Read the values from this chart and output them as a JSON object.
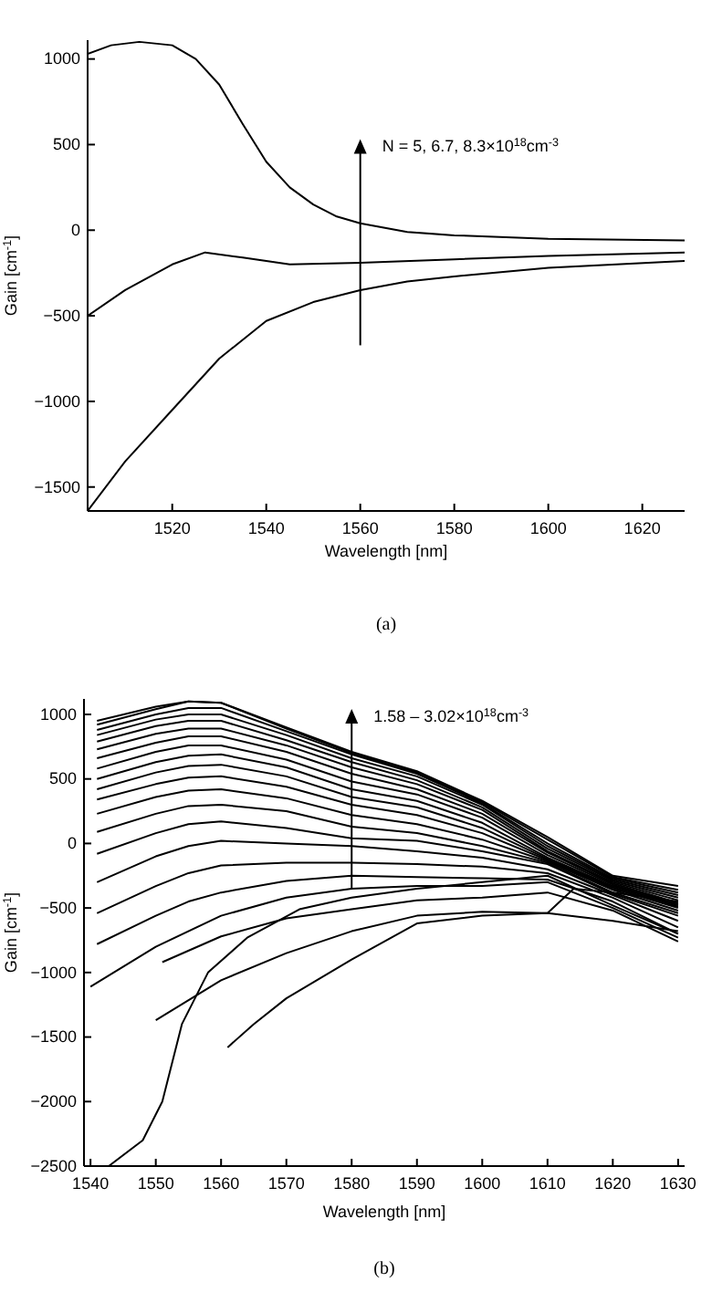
{
  "chart_data": [
    {
      "type": "line",
      "xlabel": "Wavelength [nm]",
      "ylabel": "Gain [cm$^{-1}$]",
      "xlim": [
        1502,
        1629
      ],
      "ylim": [
        -1640,
        1110
      ],
      "xticks": [
        1520,
        1540,
        1560,
        1580,
        1600,
        1620
      ],
      "yticks": [
        -1500,
        -1000,
        -500,
        0,
        500,
        1000
      ],
      "grid": false,
      "line_style": "solid",
      "marker": "none",
      "annotations": [
        {
          "text": "N = 5, 6.7, 8.3×10$^{18}$cm$^{-3}$",
          "x": 1560,
          "y": 500
        },
        "(a)"
      ],
      "series": [
        {
          "color": "#000000",
          "x": [
            1502,
            1507,
            1513,
            1520,
            1525,
            1530,
            1535,
            1540,
            1545,
            1550,
            1555,
            1560,
            1570,
            1580,
            1600,
            1629
          ],
          "values": [
            1030,
            1080,
            1100,
            1080,
            1000,
            850,
            620,
            400,
            250,
            150,
            80,
            40,
            -10,
            -30,
            -50,
            -60
          ]
        },
        {
          "color": "#000000",
          "x": [
            1502,
            1510,
            1520,
            1527,
            1535,
            1545,
            1560,
            1580,
            1600,
            1629
          ],
          "values": [
            -500,
            -350,
            -200,
            -130,
            -160,
            -200,
            -190,
            -170,
            -150,
            -130
          ]
        },
        {
          "color": "#000000",
          "x": [
            1502,
            1510,
            1520,
            1530,
            1540,
            1550,
            1560,
            1570,
            1580,
            1600,
            1629
          ],
          "values": [
            -1640,
            -1350,
            -1050,
            -750,
            -530,
            -420,
            -350,
            -300,
            -270,
            -220,
            -180
          ]
        }
      ]
    },
    {
      "type": "line",
      "xlabel": "Wavelength [nm]",
      "ylabel": "Gain [cm$^{-1}$]",
      "xlim": [
        1539,
        1631
      ],
      "ylim": [
        -2500,
        1120
      ],
      "xticks": [
        1540,
        1550,
        1560,
        1570,
        1580,
        1590,
        1600,
        1610,
        1620,
        1630
      ],
      "yticks": [
        -2500,
        -2000,
        -1500,
        -1000,
        -500,
        0,
        500,
        1000
      ],
      "grid": false,
      "line_style": "solid",
      "marker": "none",
      "annotations": [
        {
          "text": "1.58 – 3.02×10$^{18}$cm$^{-3}$",
          "x": 1580,
          "y": 1000
        },
        "(b)"
      ],
      "series": [
        {
          "color": "#000000",
          "x": [
            1541,
            1550,
            1555,
            1560,
            1570,
            1580,
            1590,
            1600,
            1610,
            1620,
            1630
          ],
          "values": [
            950,
            1060,
            1100,
            1090,
            900,
            710,
            560,
            330,
            50,
            -250,
            -330
          ]
        },
        {
          "color": "#000000",
          "x": [
            1541,
            1550,
            1555,
            1560,
            1570,
            1580,
            1590,
            1600,
            1610,
            1620,
            1630
          ],
          "values": [
            920,
            1040,
            1100,
            1090,
            890,
            700,
            550,
            320,
            30,
            -260,
            -360
          ]
        },
        {
          "color": "#000000",
          "x": [
            1541,
            1550,
            1555,
            1560,
            1570,
            1580,
            1590,
            1600,
            1610,
            1620,
            1630
          ],
          "values": [
            880,
            1000,
            1050,
            1050,
            870,
            690,
            540,
            310,
            0,
            -270,
            -380
          ]
        },
        {
          "color": "#000000",
          "x": [
            1541,
            1550,
            1555,
            1560,
            1570,
            1580,
            1590,
            1600,
            1610,
            1620,
            1630
          ],
          "values": [
            840,
            960,
            1000,
            1000,
            840,
            660,
            520,
            300,
            -20,
            -280,
            -400
          ]
        },
        {
          "color": "#000000",
          "x": [
            1541,
            1550,
            1555,
            1560,
            1570,
            1580,
            1590,
            1600,
            1610,
            1620,
            1630
          ],
          "values": [
            790,
            910,
            950,
            950,
            800,
            630,
            490,
            280,
            -40,
            -290,
            -420
          ]
        },
        {
          "color": "#000000",
          "x": [
            1541,
            1550,
            1555,
            1560,
            1570,
            1580,
            1590,
            1600,
            1610,
            1620,
            1630
          ],
          "values": [
            730,
            850,
            890,
            890,
            760,
            590,
            460,
            260,
            -60,
            -300,
            -440
          ]
        },
        {
          "color": "#000000",
          "x": [
            1541,
            1550,
            1555,
            1560,
            1570,
            1580,
            1590,
            1600,
            1610,
            1620,
            1630
          ],
          "values": [
            660,
            780,
            830,
            830,
            710,
            540,
            420,
            230,
            -70,
            -310,
            -460
          ]
        },
        {
          "color": "#000000",
          "x": [
            1541,
            1550,
            1555,
            1560,
            1570,
            1580,
            1590,
            1600,
            1610,
            1620,
            1630
          ],
          "values": [
            580,
            710,
            760,
            760,
            650,
            480,
            380,
            200,
            -90,
            -320,
            -470
          ]
        },
        {
          "color": "#000000",
          "x": [
            1541,
            1550,
            1555,
            1560,
            1570,
            1580,
            1590,
            1600,
            1610,
            1620,
            1630
          ],
          "values": [
            500,
            630,
            680,
            690,
            590,
            420,
            330,
            160,
            -110,
            -330,
            -480
          ]
        },
        {
          "color": "#000000",
          "x": [
            1541,
            1550,
            1555,
            1560,
            1570,
            1580,
            1590,
            1600,
            1610,
            1620,
            1630
          ],
          "values": [
            420,
            550,
            600,
            610,
            520,
            360,
            280,
            120,
            -120,
            -340,
            -490
          ]
        },
        {
          "color": "#000000",
          "x": [
            1541,
            1550,
            1555,
            1560,
            1570,
            1580,
            1590,
            1600,
            1610,
            1620,
            1630
          ],
          "values": [
            340,
            460,
            510,
            520,
            440,
            300,
            220,
            80,
            -130,
            -350,
            -500
          ]
        },
        {
          "color": "#000000",
          "x": [
            1541,
            1550,
            1555,
            1560,
            1570,
            1580,
            1590,
            1600,
            1610,
            1620,
            1630
          ],
          "values": [
            230,
            360,
            410,
            420,
            350,
            220,
            150,
            30,
            -140,
            -360,
            -520
          ]
        },
        {
          "color": "#000000",
          "x": [
            1541,
            1550,
            1555,
            1560,
            1570,
            1580,
            1590,
            1600,
            1610,
            1620,
            1630
          ],
          "values": [
            90,
            230,
            290,
            300,
            250,
            130,
            80,
            -20,
            -150,
            -380,
            -540
          ]
        },
        {
          "color": "#000000",
          "x": [
            1541,
            1550,
            1555,
            1560,
            1570,
            1580,
            1590,
            1600,
            1610,
            1620,
            1630
          ],
          "values": [
            -80,
            80,
            150,
            170,
            120,
            40,
            20,
            -60,
            -160,
            -390,
            -560
          ]
        },
        {
          "color": "#000000",
          "x": [
            1541,
            1550,
            1555,
            1560,
            1570,
            1580,
            1590,
            1600,
            1610,
            1620,
            1630
          ],
          "values": [
            -300,
            -100,
            -20,
            20,
            0,
            -20,
            -60,
            -110,
            -200,
            -400,
            -600
          ]
        },
        {
          "color": "#000000",
          "x": [
            1541,
            1550,
            1555,
            1560,
            1570,
            1580,
            1590,
            1600,
            1610,
            1620,
            1630
          ],
          "values": [
            -540,
            -330,
            -230,
            -170,
            -150,
            -150,
            -160,
            -180,
            -230,
            -420,
            -650
          ]
        },
        {
          "color": "#000000",
          "x": [
            1541,
            1550,
            1555,
            1560,
            1570,
            1580,
            1590,
            1600,
            1610,
            1620,
            1630
          ],
          "values": [
            -780,
            -560,
            -450,
            -380,
            -290,
            -250,
            -260,
            -270,
            -280,
            -450,
            -700
          ]
        },
        {
          "color": "#000000",
          "x": [
            1540,
            1550,
            1560,
            1570,
            1580,
            1590,
            1600,
            1610,
            1620,
            1630
          ],
          "values": [
            -1110,
            -800,
            -560,
            -420,
            -350,
            -330,
            -330,
            -300,
            -500,
            -730
          ]
        },
        {
          "color": "#000000",
          "x": [
            1551,
            1560,
            1570,
            1580,
            1590,
            1600,
            1610,
            1620,
            1630
          ],
          "values": [
            -920,
            -720,
            -580,
            -510,
            -440,
            -420,
            -380,
            -520,
            -760
          ]
        },
        {
          "color": "#000000",
          "x": [
            1550,
            1560,
            1570,
            1580,
            1590,
            1600,
            1610,
            1614,
            1620,
            1630
          ],
          "values": [
            -1370,
            -1060,
            -850,
            -680,
            -560,
            -530,
            -540,
            -350,
            -380,
            -450
          ]
        },
        {
          "color": "#000000",
          "x": [
            1561,
            1565,
            1570,
            1580,
            1590,
            1600,
            1610,
            1620,
            1630
          ],
          "values": [
            -1580,
            -1400,
            -1200,
            -900,
            -620,
            -560,
            -540,
            -600,
            -680
          ]
        },
        {
          "color": "#000000",
          "x": [
            1542.8,
            1548,
            1551,
            1554,
            1558,
            1564,
            1572,
            1580,
            1590,
            1600,
            1610,
            1620,
            1630
          ],
          "values": [
            -2500,
            -2300,
            -2000,
            -1400,
            -1000,
            -730,
            -510,
            -420,
            -350,
            -300,
            -250,
            -480,
            -700
          ]
        }
      ]
    }
  ]
}
